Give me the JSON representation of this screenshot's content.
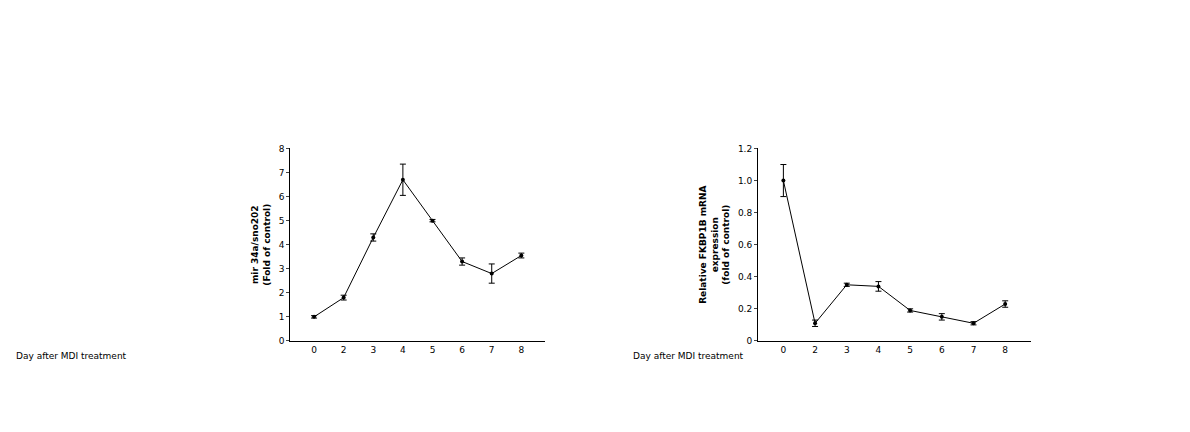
{
  "chart_data": [
    {
      "type": "line",
      "x_label": "Day after MDI treatment",
      "y_label": [
        "mir 34a/sno202",
        "(Fold of control)"
      ],
      "categories": [
        "0",
        "2",
        "3",
        "4",
        "5",
        "6",
        "7",
        "8"
      ],
      "values": [
        1.0,
        1.8,
        4.3,
        6.7,
        5.0,
        3.3,
        2.8,
        3.55
      ],
      "errors": [
        0.05,
        0.1,
        0.15,
        0.65,
        0.05,
        0.15,
        0.4,
        0.1
      ],
      "ylim": [
        0,
        8
      ],
      "yticks": [
        0,
        1,
        2,
        3,
        4,
        5,
        6,
        7,
        8
      ],
      "color": "#000000",
      "marker": "circle",
      "grid": false
    },
    {
      "type": "line",
      "x_label": "Day after MDI treatment",
      "y_label": [
        "Relative FKBP1B mRNA",
        "expression",
        "(fold of control)"
      ],
      "categories": [
        "0",
        "2",
        "3",
        "4",
        "5",
        "6",
        "7",
        "8"
      ],
      "values": [
        1.0,
        0.11,
        0.35,
        0.34,
        0.19,
        0.15,
        0.11,
        0.23
      ],
      "errors": [
        0.1,
        0.02,
        0.01,
        0.03,
        0.01,
        0.02,
        0.01,
        0.02
      ],
      "ylim": [
        0,
        1.2
      ],
      "yticks": [
        0,
        0.2,
        0.4,
        0.6,
        0.8,
        {
          "value": 1.0,
          "label": "1.0"
        },
        {
          "value": 1.2,
          "label": "1.2"
        }
      ],
      "color": "#000000",
      "marker": "circle",
      "grid": false
    }
  ]
}
